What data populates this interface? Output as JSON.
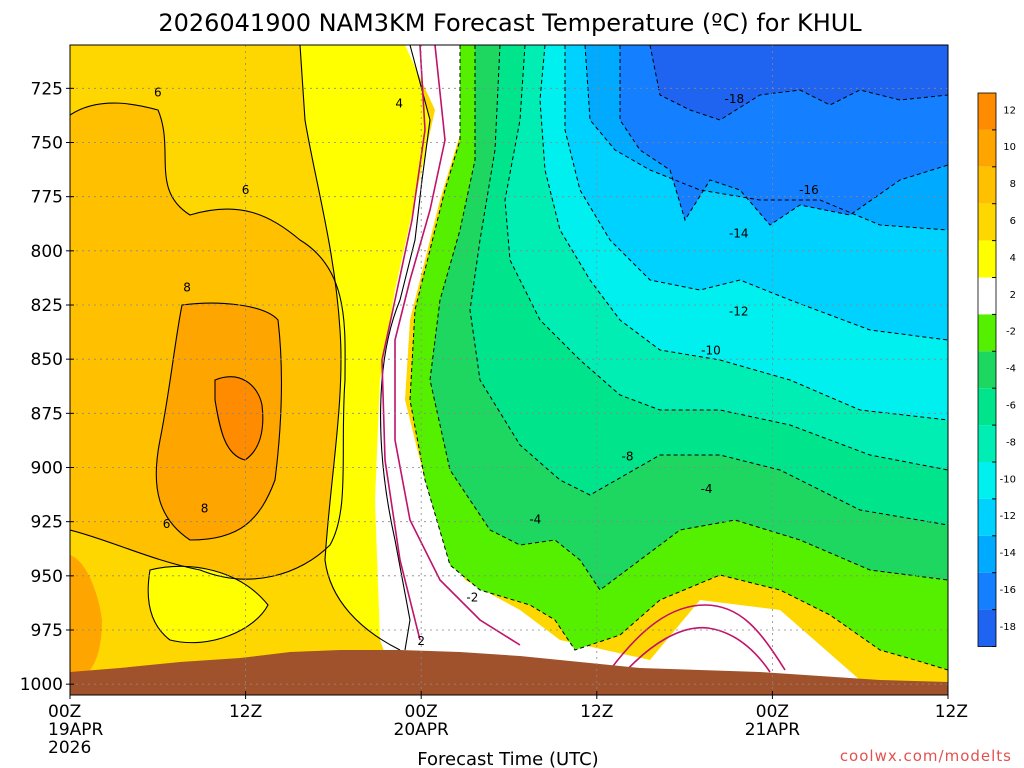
{
  "title": "2026041900 NAM3KM Forecast Temperature (ºC) for KHUL",
  "credit": "coolwx.com/modelts",
  "colors": {
    "terrain": "#a0522d",
    "freezing_line": "#c0136b",
    "bands": {
      "10_12": "#ff8c00",
      "8_10": "#ffa500",
      "6_8": "#ffc000",
      "4_6": "#ffd700",
      "2_4": "#ffff00",
      "m2_2": "#ffffff",
      "m4_m2": "#55f000",
      "m6_m4": "#1ed760",
      "m8_m6": "#00e48c",
      "m10_m8": "#00eeb4",
      "m12_m10": "#00f0f0",
      "m14_m12": "#00d2ff",
      "m16_m14": "#00aaff",
      "m18_m16": "#1480ff",
      "lt_m18": "#1e64f0"
    }
  },
  "chart_data": {
    "type": "heatmap",
    "title": "2026041900 NAM3KM Forecast Temperature (ºC) for KHUL",
    "xlabel": "Forecast Time (UTC)",
    "ylabel": "",
    "x_ticks": [
      {
        "hour": 0,
        "label": "00Z",
        "sub1": "19APR",
        "sub2": "2026"
      },
      {
        "hour": 12,
        "label": "12Z",
        "sub1": "",
        "sub2": ""
      },
      {
        "hour": 24,
        "label": "00Z",
        "sub1": "20APR",
        "sub2": ""
      },
      {
        "hour": 36,
        "label": "12Z",
        "sub1": "",
        "sub2": ""
      },
      {
        "hour": 48,
        "label": "00Z",
        "sub1": "21APR",
        "sub2": ""
      },
      {
        "hour": 60,
        "label": "12Z",
        "sub1": "",
        "sub2": ""
      }
    ],
    "x_range_hours": [
      0,
      60
    ],
    "y_ticks": [
      725,
      750,
      775,
      800,
      825,
      850,
      875,
      900,
      925,
      950,
      975,
      1000
    ],
    "y_range_hpa": [
      705,
      1005
    ],
    "grid": "dotted",
    "colorbar_ticks": [
      "12",
      "10",
      "8",
      "6",
      "4",
      "2",
      "-2",
      "-4",
      "-6",
      "-8",
      "-10",
      "-12",
      "-14",
      "-16",
      "-18"
    ],
    "contour_labels": [
      {
        "text": "6",
        "hour": 6.0,
        "hpa": 727
      },
      {
        "text": "4",
        "hour": 22.5,
        "hpa": 732
      },
      {
        "text": "6",
        "hour": 12.0,
        "hpa": 772
      },
      {
        "text": "8",
        "hour": 8.0,
        "hpa": 817
      },
      {
        "text": "8",
        "hour": 9.2,
        "hpa": 919
      },
      {
        "text": "6",
        "hour": 6.6,
        "hpa": 926
      },
      {
        "text": "2",
        "hour": 24.0,
        "hpa": 980
      },
      {
        "text": "-2",
        "hour": 27.5,
        "hpa": 960
      },
      {
        "text": "-4",
        "hour": 31.8,
        "hpa": 924
      },
      {
        "text": "-8",
        "hour": 38.1,
        "hpa": 895
      },
      {
        "text": "-4",
        "hour": 43.5,
        "hpa": 910
      },
      {
        "text": "-10",
        "hour": 43.8,
        "hpa": 846
      },
      {
        "text": "-12",
        "hour": 45.7,
        "hpa": 828
      },
      {
        "text": "-14",
        "hour": 45.7,
        "hpa": 792
      },
      {
        "text": "-16",
        "hour": 50.5,
        "hpa": 772
      },
      {
        "text": "-18",
        "hour": 45.4,
        "hpa": 730
      }
    ],
    "colorbar_bands": [
      {
        "min": 10,
        "max": 12,
        "color": "#ff8c00"
      },
      {
        "min": 8,
        "max": 10,
        "color": "#ffa500"
      },
      {
        "min": 6,
        "max": 8,
        "color": "#ffc000"
      },
      {
        "min": 4,
        "max": 6,
        "color": "#ffd700"
      },
      {
        "min": 2,
        "max": 4,
        "color": "#ffff00"
      },
      {
        "min": -2,
        "max": 2,
        "color": "#ffffff"
      },
      {
        "min": -4,
        "max": -2,
        "color": "#55f000"
      },
      {
        "min": -6,
        "max": -4,
        "color": "#1ed760"
      },
      {
        "min": -8,
        "max": -6,
        "color": "#00e48c"
      },
      {
        "min": -10,
        "max": -8,
        "color": "#00eeb4"
      },
      {
        "min": -12,
        "max": -10,
        "color": "#00f0f0"
      },
      {
        "min": -14,
        "max": -12,
        "color": "#00d2ff"
      },
      {
        "min": -16,
        "max": -14,
        "color": "#00aaff"
      },
      {
        "min": -18,
        "max": -16,
        "color": "#1480ff"
      },
      {
        "min": -20,
        "max": -18,
        "color": "#1e64f0"
      }
    ]
  }
}
